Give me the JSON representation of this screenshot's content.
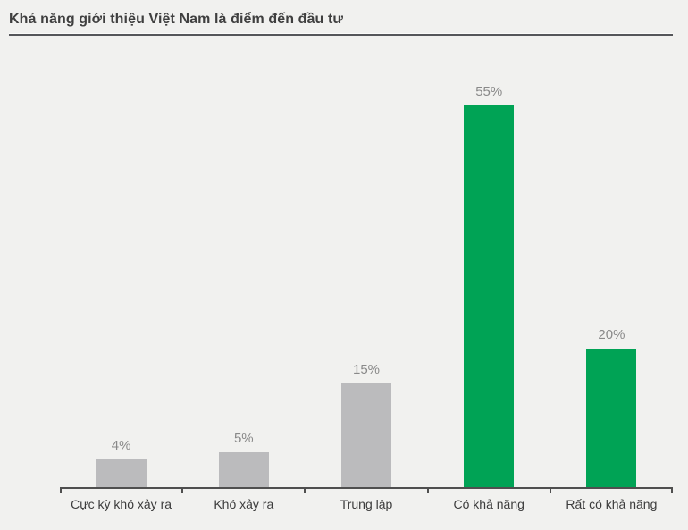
{
  "header": {
    "title": "Khả năng giới thiệu Việt Nam là điểm đến đầu tư"
  },
  "chart_data": {
    "type": "bar",
    "title": "Khả năng giới thiệu Việt Nam là điểm đến đầu tư",
    "categories": [
      "Cực kỳ khó xảy ra",
      "Khó xảy ra",
      "Trung lập",
      "Có khả năng",
      "Rất có khả năng"
    ],
    "values": [
      4,
      5,
      15,
      55,
      20
    ],
    "value_labels": [
      "4%",
      "5%",
      "15%",
      "55%",
      "20%"
    ],
    "bar_colors": [
      "#bbbbbd",
      "#bbbbbd",
      "#bbbbbd",
      "#00a355",
      "#00a355"
    ],
    "xlabel": "",
    "ylabel": "",
    "ylim": [
      0,
      60
    ],
    "grid": false,
    "legend": false,
    "colors": {
      "background": "#f1f1ef",
      "neutral_bar": "#bbbbbd",
      "positive_bar": "#00a355",
      "axis": "#4f4f4f",
      "value_label": "#898989",
      "category_label": "#3c3c3c",
      "title_text": "#3f3f3f",
      "title_rule": "#55565a"
    }
  }
}
